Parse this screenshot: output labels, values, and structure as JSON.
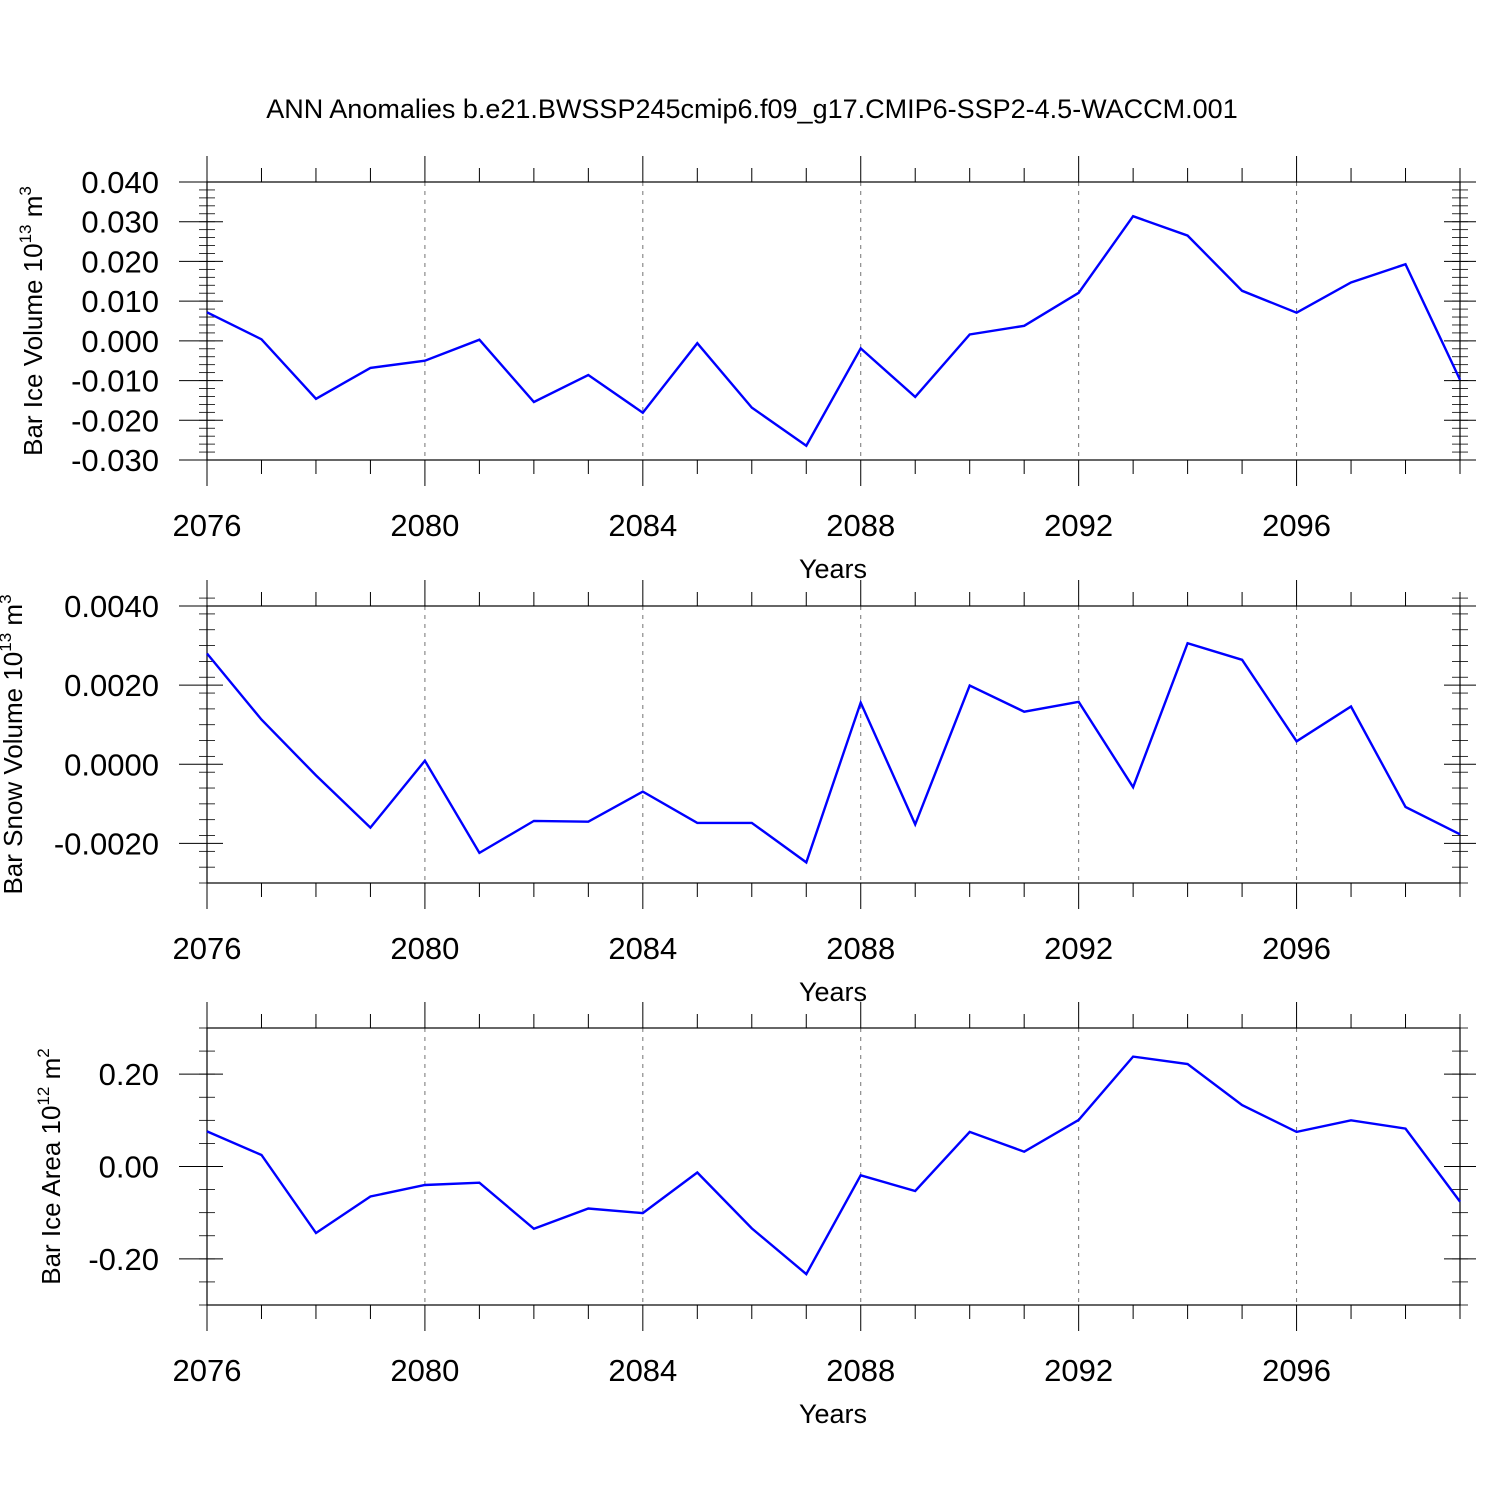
{
  "figure": {
    "title": "ANN Anomalies b.e21.BWSSP245cmip6.f09_g17.CMIP6-SSP2-4.5-WACCM.001",
    "line_color": "#0000ff"
  },
  "chart_data": [
    {
      "type": "line",
      "ylabel": {
        "text": "Bar Ice Volume 10",
        "exponent": "13",
        "unit": " m",
        "unit_exponent": "3"
      },
      "xlabel": "Years",
      "xlim": [
        2076,
        2099
      ],
      "ylim": [
        -0.03,
        0.04
      ],
      "xticks": [
        2076,
        2080,
        2084,
        2088,
        2092,
        2096
      ],
      "xtick_labels": [
        "2076",
        "2080",
        "2084",
        "2088",
        "2092",
        "2096"
      ],
      "yticks": [
        0.04,
        0.03,
        0.02,
        0.01,
        0.0,
        -0.01,
        -0.02,
        -0.03
      ],
      "ytick_labels": [
        "0.040",
        "0.030",
        "0.020",
        "0.010",
        "0.000",
        "-0.010",
        "-0.020",
        "-0.030"
      ],
      "minor_step": 0.002,
      "x": [
        2076,
        2077,
        2078,
        2079,
        2080,
        2081,
        2082,
        2083,
        2084,
        2085,
        2086,
        2087,
        2088,
        2089,
        2090,
        2091,
        2092,
        2093,
        2094,
        2095,
        2096,
        2097,
        2098,
        2099
      ],
      "values": [
        0.0072,
        0.0004,
        -0.0146,
        -0.0068,
        -0.005,
        0.0003,
        -0.0154,
        -0.0086,
        -0.0181,
        -0.0006,
        -0.0168,
        -0.0264,
        -0.0019,
        -0.0141,
        0.0016,
        0.0038,
        0.0121,
        0.0314,
        0.0265,
        0.0126,
        0.0071,
        0.0147,
        0.0193,
        -0.0098
      ]
    },
    {
      "type": "line",
      "ylabel": {
        "text": "Bar Snow Volume 10",
        "exponent": "13",
        "unit": " m",
        "unit_exponent": "3"
      },
      "xlabel": "Years",
      "xlim": [
        2076,
        2099
      ],
      "ylim": [
        -0.003,
        0.004
      ],
      "xticks": [
        2076,
        2080,
        2084,
        2088,
        2092,
        2096
      ],
      "xtick_labels": [
        "2076",
        "2080",
        "2084",
        "2088",
        "2092",
        "2096"
      ],
      "yticks": [
        0.004,
        0.002,
        0.0,
        -0.002
      ],
      "ytick_labels": [
        "0.0040",
        "0.0020",
        "0.0000",
        "-0.0020"
      ],
      "minor_step": 0.0004,
      "x": [
        2076,
        2077,
        2078,
        2079,
        2080,
        2081,
        2082,
        2083,
        2084,
        2085,
        2086,
        2087,
        2088,
        2089,
        2090,
        2091,
        2092,
        2093,
        2094,
        2095,
        2096,
        2097,
        2098,
        2099
      ],
      "values": [
        0.0028,
        0.00113,
        -0.00028,
        -0.0016,
        9e-05,
        -0.00224,
        -0.00143,
        -0.00145,
        -0.00069,
        -0.00148,
        -0.00148,
        -0.00248,
        0.00156,
        -0.00152,
        0.00199,
        0.00133,
        0.00158,
        -0.00058,
        0.00306,
        0.00264,
        0.00058,
        0.00146,
        -0.00108,
        -0.00177
      ]
    },
    {
      "type": "line",
      "ylabel": {
        "text": "Bar Ice Area 10",
        "exponent": "12",
        "unit": " m",
        "unit_exponent": "2"
      },
      "xlabel": "Years",
      "xlim": [
        2076,
        2099
      ],
      "ylim": [
        -0.3,
        0.3
      ],
      "xticks": [
        2076,
        2080,
        2084,
        2088,
        2092,
        2096
      ],
      "xtick_labels": [
        "2076",
        "2080",
        "2084",
        "2088",
        "2092",
        "2096"
      ],
      "yticks": [
        0.2,
        0.0,
        -0.2
      ],
      "ytick_labels": [
        "0.20",
        "0.00",
        "-0.20"
      ],
      "minor_step": 0.05,
      "x": [
        2076,
        2077,
        2078,
        2079,
        2080,
        2081,
        2082,
        2083,
        2084,
        2085,
        2086,
        2087,
        2088,
        2089,
        2090,
        2091,
        2092,
        2093,
        2094,
        2095,
        2096,
        2097,
        2098,
        2099
      ],
      "values": [
        0.076,
        0.025,
        -0.144,
        -0.065,
        -0.04,
        -0.035,
        -0.135,
        -0.091,
        -0.101,
        -0.013,
        -0.134,
        -0.233,
        -0.019,
        -0.053,
        0.075,
        0.032,
        0.101,
        0.238,
        0.222,
        0.133,
        0.075,
        0.1,
        0.082,
        -0.076
      ]
    }
  ]
}
